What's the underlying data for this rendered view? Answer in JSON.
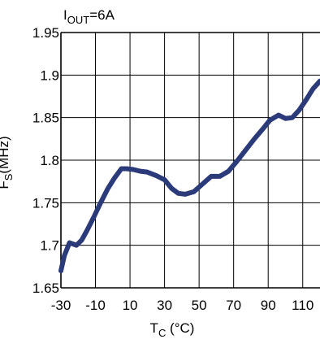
{
  "chart_data": {
    "type": "line",
    "title": "",
    "annotation": {
      "main": "I",
      "sub": "OUT",
      "suffix": "=6A"
    },
    "xlabel": {
      "main": "T",
      "sub": "C",
      "suffix": " (°C)"
    },
    "ylabel": {
      "main": "F",
      "sub": "S",
      "suffix": "(MHz)"
    },
    "xlim": [
      -30,
      120
    ],
    "ylim": [
      1.65,
      1.95
    ],
    "x_ticks": [
      -30,
      -10,
      10,
      30,
      50,
      70,
      90,
      110
    ],
    "x_tick_labels": [
      "-30",
      "-10",
      "10",
      "30",
      "50",
      "70",
      "90",
      "110"
    ],
    "y_ticks": [
      1.65,
      1.7,
      1.75,
      1.8,
      1.85,
      1.9,
      1.95
    ],
    "y_tick_labels": [
      "1.65",
      "1.7",
      "1.75",
      "1.8",
      "1.85",
      "1.9",
      "1.95"
    ],
    "grid": true,
    "series": [
      {
        "color": "#2b3a78",
        "x": [
          -30,
          -28,
          -25,
          -21,
          -18,
          -15,
          -11,
          -7,
          -3,
          1,
          5,
          8,
          12,
          16,
          20,
          25,
          30,
          34,
          38,
          42,
          47,
          52,
          57,
          62,
          67,
          72,
          77,
          82,
          87,
          91,
          96,
          100,
          104,
          108,
          112,
          116,
          120
        ],
        "y": [
          1.67,
          1.688,
          1.703,
          1.7,
          1.706,
          1.717,
          1.733,
          1.75,
          1.766,
          1.779,
          1.79,
          1.79,
          1.789,
          1.787,
          1.786,
          1.782,
          1.777,
          1.767,
          1.761,
          1.76,
          1.763,
          1.772,
          1.781,
          1.781,
          1.787,
          1.799,
          1.812,
          1.825,
          1.837,
          1.847,
          1.853,
          1.849,
          1.85,
          1.859,
          1.871,
          1.884,
          1.893
        ]
      }
    ]
  }
}
